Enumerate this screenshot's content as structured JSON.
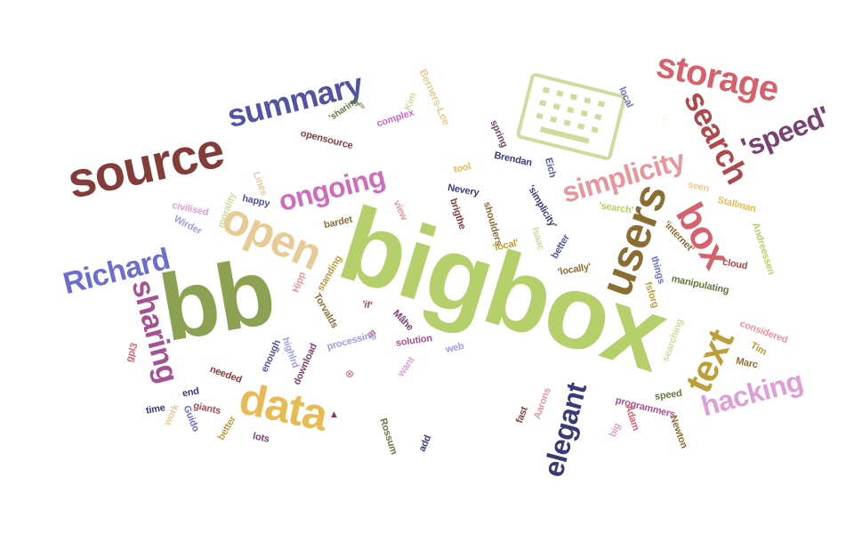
{
  "words": [
    {
      "text": "bigbox",
      "color": "#b5cf6b"
    },
    {
      "text": "bb",
      "color": "#8ca252"
    },
    {
      "text": "source",
      "color": "#843c39"
    },
    {
      "text": "users",
      "color": "#8c6d31"
    },
    {
      "text": "storage",
      "color": "#d6616b"
    },
    {
      "text": "search",
      "color": "#ad494a"
    },
    {
      "text": "summary",
      "color": "#5254a3"
    },
    {
      "text": "'speed'",
      "color": "#7b4173"
    },
    {
      "text": "simplicity",
      "color": "#e7969c"
    },
    {
      "text": "box",
      "color": "#d6616b"
    },
    {
      "text": "ongoing",
      "color": "#ce6dbd"
    },
    {
      "text": "open",
      "color": "#e7cb94"
    },
    {
      "text": "Richard",
      "color": "#6b6ecf"
    },
    {
      "text": "sharing",
      "color": "#a55194"
    },
    {
      "text": "text",
      "color": "#bd9e39"
    },
    {
      "text": "hacking",
      "color": "#de9ed6"
    },
    {
      "text": "elegant",
      "color": "#393b79"
    },
    {
      "text": "data",
      "color": "#e7ba52"
    },
    {
      "text": "Berners-Lee",
      "color": "#e7cb94"
    },
    {
      "text": "Kim",
      "color": "#cedb9c"
    },
    {
      "text": "complex",
      "color": "#ce6dbd"
    },
    {
      "text": "'sharing'",
      "color": "#637939"
    },
    {
      "text": "opensource",
      "color": "#843c39"
    },
    {
      "text": "local",
      "color": "#6b6ecf"
    },
    {
      "text": "spring",
      "color": "#7b4173"
    },
    {
      "text": "Brendan",
      "color": "#393b79"
    },
    {
      "text": "Eich",
      "color": "#5254a3"
    },
    {
      "text": "tool",
      "color": "#e7ba52"
    },
    {
      "text": "Nevery",
      "color": "#393b79"
    },
    {
      "text": "brigthe",
      "color": "#843c39"
    },
    {
      "text": "shoulders",
      "color": "#8c6d31"
    },
    {
      "text": "'simplicity'",
      "color": "#393b79"
    },
    {
      "text": "'search'",
      "color": "#b5cf6b"
    },
    {
      "text": "'local'",
      "color": "#bd9e39"
    },
    {
      "text": "Isaac",
      "color": "#cedb9c"
    },
    {
      "text": "better",
      "color": "#5254a3"
    },
    {
      "text": "'locally'",
      "color": "#8c6d31"
    },
    {
      "text": "seen",
      "color": "#e7cb94"
    },
    {
      "text": "Stallman",
      "color": "#e7ba52"
    },
    {
      "text": "'internet'",
      "color": "#8c6d31"
    },
    {
      "text": "Andreessen",
      "color": "#b5cf6b"
    },
    {
      "text": "cloud",
      "color": "#ad494a"
    },
    {
      "text": "things",
      "color": "#6b6ecf"
    },
    {
      "text": "manipulating",
      "color": "#637939"
    },
    {
      "text": "fsforg",
      "color": "#bd9e39"
    },
    {
      "text": "considered",
      "color": "#e7969c"
    },
    {
      "text": "Tim",
      "color": "#bd9e39"
    },
    {
      "text": "Marc",
      "color": "#8c6d31"
    },
    {
      "text": "searching",
      "color": "#cedb9c"
    },
    {
      "text": "speed",
      "color": "#637939"
    },
    {
      "text": "programmers",
      "color": "#a55194"
    },
    {
      "text": "Adam",
      "color": "#d6616b"
    },
    {
      "text": "big",
      "color": "#de9ed6"
    },
    {
      "text": "Newton",
      "color": "#8c6d31"
    },
    {
      "text": "Aarons",
      "color": "#e7969c"
    },
    {
      "text": "fast",
      "color": "#843c39"
    },
    {
      "text": "civilised",
      "color": "#de9ed6"
    },
    {
      "text": "morality",
      "color": "#cedb9c"
    },
    {
      "text": "Lines",
      "color": "#e7cb94"
    },
    {
      "text": "happy",
      "color": "#5254a3"
    },
    {
      "text": "Wirder",
      "color": "#9c9ede"
    },
    {
      "text": "Hipp",
      "color": "#e7969c"
    },
    {
      "text": "bardet",
      "color": "#8c6d31"
    },
    {
      "text": "standing",
      "color": "#bd9e39"
    },
    {
      "text": "'if'",
      "color": "#ad494a"
    },
    {
      "text": "Torvalds",
      "color": "#8c6d31"
    },
    {
      "text": "Mâhe",
      "color": "#7b4173"
    },
    {
      "text": "m",
      "color": "#d6616b"
    },
    {
      "text": "solution",
      "color": "#a55194"
    },
    {
      "text": "processing",
      "color": "#9c9ede"
    },
    {
      "text": "web",
      "color": "#9c9ede"
    },
    {
      "text": "want",
      "color": "#de9ed6"
    },
    {
      "text": "view",
      "color": "#e7969c"
    },
    {
      "text": "gpl3",
      "color": "#d6616b"
    },
    {
      "text": "enough",
      "color": "#5254a3"
    },
    {
      "text": "highlrd",
      "color": "#9c9ede"
    },
    {
      "text": "download",
      "color": "#7b4173"
    },
    {
      "text": "needed",
      "color": "#843c39"
    },
    {
      "text": "end",
      "color": "#393b79"
    },
    {
      "text": "time",
      "color": "#393b79"
    },
    {
      "text": "work",
      "color": "#e7cb94"
    },
    {
      "text": "Guido",
      "color": "#6b6ecf"
    },
    {
      "text": "giants",
      "color": "#ad494a"
    },
    {
      "text": "better",
      "color": "#bd9e39"
    },
    {
      "text": "lots",
      "color": "#7b4173"
    },
    {
      "text": "Rossum",
      "color": "#637939"
    },
    {
      "text": "add",
      "color": "#393b79"
    }
  ],
  "icons": [
    {
      "name": "keyboard-icon",
      "color": "#cedb9c"
    },
    {
      "name": "small-circle-symbol-icon",
      "color": "#d6616b"
    },
    {
      "name": "small-triangle-icon",
      "color": "#7b4173"
    },
    {
      "name": "small-glyph-icon",
      "color": "#e7ba52"
    }
  ]
}
